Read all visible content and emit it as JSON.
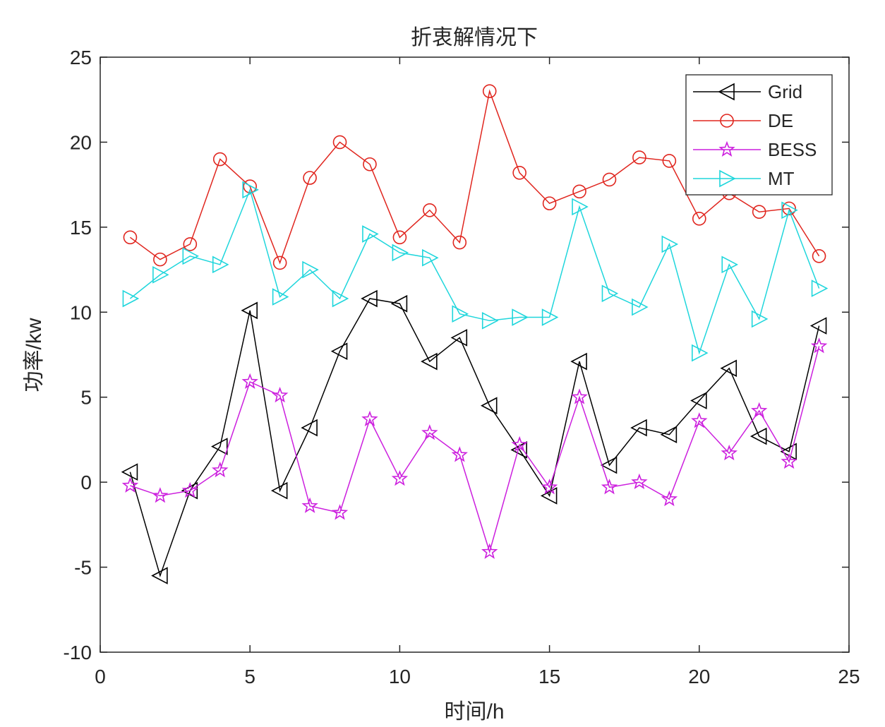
{
  "chart_data": {
    "type": "line",
    "title": "折衷解情况下",
    "xlabel": "时间/h",
    "ylabel": "功率/kw",
    "xlim": [
      0,
      25
    ],
    "ylim": [
      -10,
      25
    ],
    "xticks": [
      0,
      5,
      10,
      15,
      20,
      25
    ],
    "yticks": [
      -10,
      -5,
      0,
      5,
      10,
      15,
      20,
      25
    ],
    "grid": false,
    "legend_position": "top-right",
    "x": [
      1,
      2,
      3,
      4,
      5,
      6,
      7,
      8,
      9,
      10,
      11,
      12,
      13,
      14,
      15,
      16,
      17,
      18,
      19,
      20,
      21,
      22,
      23,
      24
    ],
    "series": [
      {
        "name": "Grid",
        "color": "#000000",
        "marker": "triangle-left",
        "values": [
          0.6,
          -5.5,
          -0.5,
          2.1,
          10.1,
          -0.5,
          3.2,
          7.7,
          10.8,
          10.5,
          7.1,
          8.5,
          4.5,
          1.9,
          -0.8,
          7.1,
          1.0,
          3.2,
          2.8,
          4.8,
          6.7,
          2.7,
          1.8,
          9.2
        ]
      },
      {
        "name": "DE",
        "color": "#e0261f",
        "marker": "circle",
        "values": [
          14.4,
          13.1,
          14.0,
          19.0,
          17.4,
          12.9,
          17.9,
          20.0,
          18.7,
          14.4,
          16.0,
          14.1,
          23.0,
          18.2,
          16.4,
          17.1,
          17.8,
          19.1,
          18.9,
          15.5,
          17.0,
          15.9,
          16.1,
          13.3
        ]
      },
      {
        "name": "BESS",
        "color": "#cc1fde",
        "marker": "star",
        "values": [
          -0.2,
          -0.8,
          -0.5,
          0.7,
          5.9,
          5.1,
          -1.4,
          -1.8,
          3.7,
          0.2,
          2.9,
          1.6,
          -4.1,
          2.2,
          -0.3,
          5.0,
          -0.3,
          0.0,
          -1.0,
          3.6,
          1.7,
          4.2,
          1.2,
          8.0
        ]
      },
      {
        "name": "MT",
        "color": "#1fd6dc",
        "marker": "triangle-right",
        "values": [
          10.8,
          12.2,
          13.3,
          12.8,
          17.2,
          10.9,
          12.5,
          10.8,
          14.6,
          13.5,
          13.2,
          9.9,
          9.5,
          9.7,
          9.7,
          16.2,
          11.1,
          10.3,
          14.0,
          7.6,
          12.8,
          9.6,
          16.0,
          11.4
        ]
      }
    ]
  }
}
